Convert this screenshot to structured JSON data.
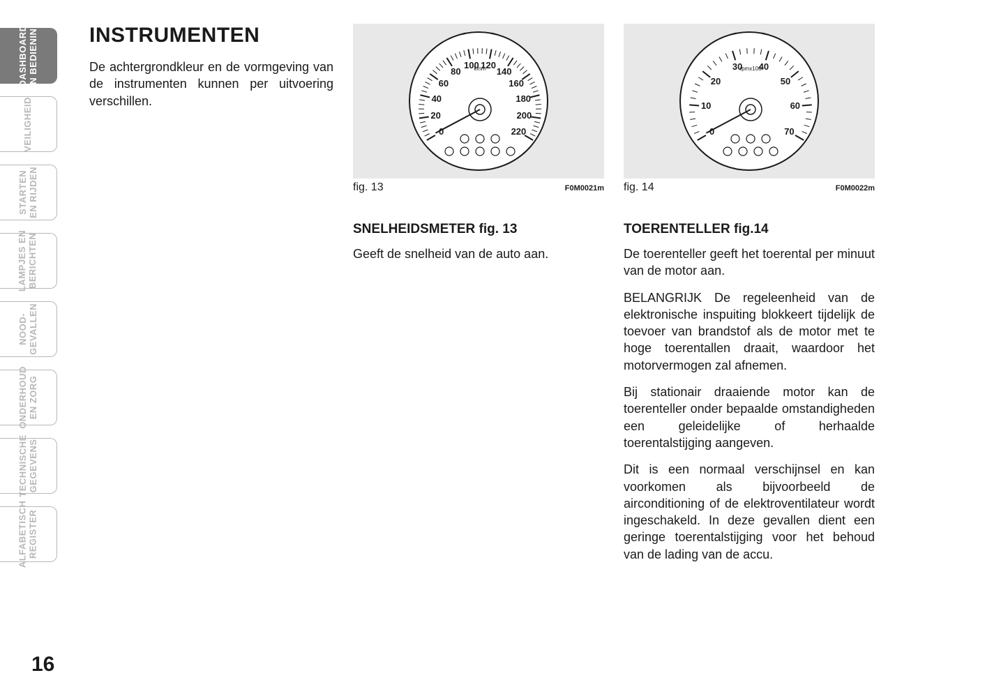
{
  "page_number": "16",
  "tabs": [
    {
      "label": "DASHBOARD\nEN BEDIENING",
      "active": true
    },
    {
      "label": "VEILIGHEID",
      "active": false
    },
    {
      "label": "STARTEN\nEN RIJDEN",
      "active": false
    },
    {
      "label": "LAMPJES EN\nBERICHTEN",
      "active": false
    },
    {
      "label": "NOOD-\nGEVALLEN",
      "active": false
    },
    {
      "label": "ONDERHOUD\nEN ZORG",
      "active": false
    },
    {
      "label": "TECHNISCHE\nGEGEVENS",
      "active": false
    },
    {
      "label": "ALFABETISCH\nREGISTER",
      "active": false
    }
  ],
  "column1": {
    "heading": "INSTRUMENTEN",
    "intro": "De achtergrondkleur en de vormgeving van de instrumenten kunnen per uitvoering verschillen."
  },
  "column2": {
    "figure": {
      "label": "fig. 13",
      "code": "F0M0021m",
      "gauge": {
        "type": "speedometer",
        "unit": "km/h",
        "min": 0,
        "max": 220,
        "ticks": [
          "0",
          "20",
          "40",
          "60",
          "80",
          "100",
          "120",
          "140",
          "160",
          "180",
          "200",
          "220"
        ],
        "start_angle": 210,
        "end_angle": -30,
        "dial_color": "#ffffff",
        "outline_color": "#1a1a1a",
        "text_color": "#1a1a1a",
        "icons_row1": [
          "abs-icon",
          "brake-warning-icon",
          "asr-icon"
        ],
        "icons_row2": [
          "brake-disc-icon",
          "recirculation-icon",
          "steering-icon",
          "park-icon",
          "door-icon"
        ]
      }
    },
    "heading": "SNELHEIDSMETER fig. 13",
    "para1": "Geeft de snelheid van de auto aan."
  },
  "column3": {
    "figure": {
      "label": "fig. 14",
      "code": "F0M0022m",
      "gauge": {
        "type": "tachometer",
        "unit": "rpmx100",
        "min": 0,
        "max": 70,
        "ticks": [
          "0",
          "10",
          "20",
          "30",
          "40",
          "50",
          "60",
          "70"
        ],
        "start_angle": 210,
        "end_angle": -30,
        "redzone_start": 55,
        "dial_color": "#ffffff",
        "outline_color": "#1a1a1a",
        "text_color": "#1a1a1a",
        "icons_row1": [
          "battery-icon",
          "oil-icon",
          "glowplug-icon"
        ],
        "icons_row2": [
          "engine-icon",
          "fuel-icon",
          "water-icon",
          "airbag-icon"
        ]
      }
    },
    "heading": "TOERENTELLER fig.14",
    "para1": "De toerenteller geeft het toerental per minuut van de motor aan.",
    "para2": "BELANGRIJK De regeleenheid van de elektronische inspuiting blokkeert tijdelijk de toevoer van brandstof als de motor met te hoge toerentallen draait, waardoor het motorvermogen zal afnemen.",
    "para3": "Bij stationair draaiende motor kan de toerenteller onder bepaalde omstandigheden een geleidelijke of herhaalde toerentalstijging aangeven.",
    "para4": "Dit is een normaal verschijnsel en kan voorkomen als bijvoorbeeld de airconditioning of de elektroventilateur wordt ingeschakeld. In deze gevallen dient een geringe toerentalstijging voor het behoud van de lading van de accu."
  },
  "colors": {
    "page_bg": "#ffffff",
    "fig_bg": "#e8e8e8",
    "tab_border": "#b8b8b8",
    "tab_inactive_text": "#b8b8b8",
    "tab_active_bg": "#7a7a7a",
    "tab_active_text": "#ffffff",
    "text": "#1a1a1a"
  }
}
